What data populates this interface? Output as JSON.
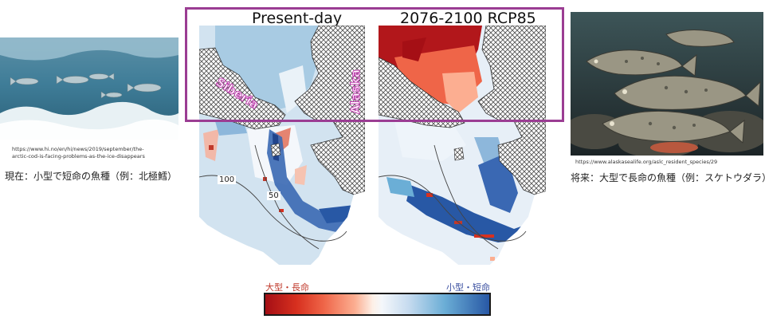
{
  "left_panel": {
    "image_desc_icon": "arctic-cod-photo",
    "url": "https://www.hi.no/en/hi/news/2019/september/the-arctic-cod-is-facing-problems-as-the-ice-disappears",
    "url_line1": "https://www.hi.no/en/hi/news/2019/september/the-",
    "url_line2": "arctic-cod-is-facing-problems-as-the-ice-disappears",
    "caption": "現在：小型で短命の魚種（例：北極鱈）"
  },
  "right_panel": {
    "image_desc_icon": "pacific-cod-photo",
    "url": "https://www.alaskasealife.org/aslc_resident_species/29",
    "caption": "将来：大型で長命の魚種（例：スケトウダラ）"
  },
  "maps": {
    "left_title": "Present-day",
    "right_title": "2076-2100 RCP85",
    "siberia_label": "Siberia",
    "alaska_label": "Alaska",
    "contour_100": "100",
    "contour_50": "50"
  },
  "colorbar": {
    "left_label": "大型・長命",
    "right_label": "小型・短命",
    "left_color": "#a50f15",
    "right_color": "#2858a5",
    "left_label_color": "#c0392b",
    "right_label_color": "#3a4fa0"
  },
  "highlight_color": "#9b3d93"
}
